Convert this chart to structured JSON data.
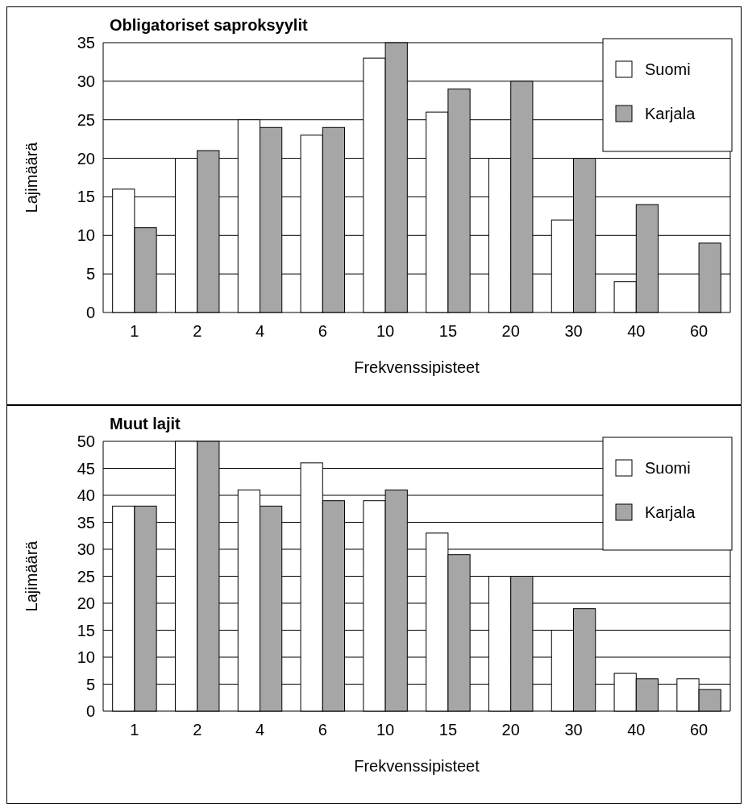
{
  "chart_data": [
    {
      "type": "bar",
      "title": "Obligatoriset saproksyylit",
      "xlabel": "Frekvenssipisteet",
      "ylabel": "Lajimäärä",
      "categories": [
        "1",
        "2",
        "4",
        "6",
        "10",
        "15",
        "20",
        "30",
        "40",
        "60"
      ],
      "series": [
        {
          "name": "Suomi",
          "color": "#ffffff",
          "values": [
            16,
            20,
            25,
            23,
            33,
            26,
            20,
            12,
            4,
            0
          ]
        },
        {
          "name": "Karjala",
          "color": "#a6a6a6",
          "values": [
            11,
            21,
            24,
            24,
            35,
            29,
            30,
            20,
            14,
            9
          ]
        }
      ],
      "ylim": [
        0,
        35
      ],
      "yticks": [
        0,
        5,
        10,
        15,
        20,
        25,
        30,
        35
      ],
      "grid": "y",
      "legend": "top right"
    },
    {
      "type": "bar",
      "title": "Muut lajit",
      "xlabel": "Frekvenssipisteet",
      "ylabel": "Lajimäärä",
      "categories": [
        "1",
        "2",
        "4",
        "6",
        "10",
        "15",
        "20",
        "30",
        "40",
        "60"
      ],
      "series": [
        {
          "name": "Suomi",
          "color": "#ffffff",
          "values": [
            38,
            50,
            41,
            46,
            39,
            33,
            25,
            15,
            7,
            6
          ]
        },
        {
          "name": "Karjala",
          "color": "#a6a6a6",
          "values": [
            38,
            50,
            38,
            39,
            41,
            29,
            25,
            19,
            6,
            4
          ]
        }
      ],
      "ylim": [
        0,
        50
      ],
      "yticks": [
        0,
        5,
        10,
        15,
        20,
        25,
        30,
        35,
        40,
        45,
        50
      ],
      "grid": "y",
      "legend": "top right"
    }
  ]
}
